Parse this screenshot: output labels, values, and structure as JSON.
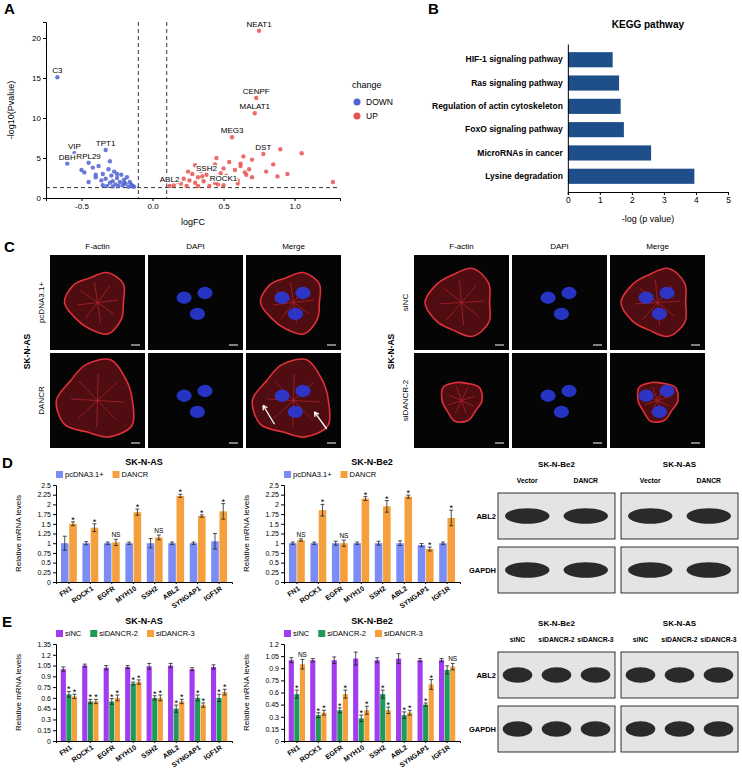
{
  "chart_data": [
    {
      "type": "scatter",
      "x_label": "logFC",
      "y_label": "-log10(Pvalue)",
      "legend_title": "change",
      "legend": "right",
      "grid": false,
      "xlim": [
        -0.75,
        1.32
      ],
      "xticks": [
        -0.5,
        {
          "value": 0,
          "label": "0.0"
        },
        0.5,
        {
          "value": 1,
          "label": "1.0"
        }
      ],
      "ylim": [
        0,
        22
      ],
      "yticks": [
        0,
        5,
        10,
        15,
        20
      ],
      "reference_lines": {
        "x": [
          -0.1,
          0.1
        ],
        "y": [
          1.3
        ]
      },
      "series": [
        {
          "name": "DOWN",
          "color": "#4f63d2",
          "x": [
            -0.67,
            -0.55,
            -0.6,
            -0.33,
            -0.45,
            -0.5,
            -0.48,
            -0.42,
            -0.4,
            -0.38,
            -0.36,
            -0.35,
            -0.33,
            -0.31,
            -0.3,
            -0.29,
            -0.28,
            -0.27,
            -0.26,
            -0.25,
            -0.24,
            -0.23,
            -0.22,
            -0.21,
            -0.2,
            -0.19,
            -0.18,
            -0.17,
            -0.16,
            -0.15,
            -0.14,
            -0.13,
            -0.4,
            -0.35,
            -0.3,
            -0.25,
            -0.2,
            -0.45,
            -0.32,
            -0.28
          ],
          "values": [
            15.1,
            5.6,
            4.3,
            6.0,
            4.4,
            3.5,
            3.2,
            3.8,
            2.6,
            4.0,
            2.2,
            3.0,
            2.4,
            3.6,
            1.9,
            2.8,
            2.1,
            3.3,
            1.7,
            2.5,
            1.5,
            2.0,
            2.9,
            1.6,
            2.3,
            1.8,
            2.6,
            1.4,
            2.0,
            1.7,
            1.5,
            1.4,
            2.9,
            1.6,
            4.6,
            3.0,
            1.9,
            2.0,
            1.5,
            1.45
          ]
        },
        {
          "name": "UP",
          "color": "#e8524f",
          "x": [
            0.75,
            0.73,
            0.72,
            0.56,
            0.78,
            0.38,
            0.12,
            0.5,
            0.15,
            0.18,
            0.2,
            0.22,
            0.24,
            0.26,
            0.28,
            0.3,
            0.32,
            0.34,
            0.36,
            0.4,
            0.42,
            0.44,
            0.46,
            0.48,
            0.52,
            0.54,
            0.58,
            0.6,
            0.62,
            0.64,
            0.66,
            0.68,
            0.7,
            0.8,
            0.85,
            0.9,
            0.95,
            1.05,
            1.27,
            0.25,
            0.3,
            0.35,
            0.4,
            0.45,
            0.5,
            0.55,
            0.6,
            0.65,
            0.7,
            0.32,
            0.44,
            0.62,
            0.88
          ],
          "values": [
            20.9,
            12.5,
            10.6,
            7.6,
            5.5,
            2.9,
            1.5,
            1.6,
            1.6,
            2.0,
            1.8,
            2.4,
            1.5,
            2.2,
            3.0,
            1.9,
            2.6,
            3.4,
            2.1,
            3.8,
            2.5,
            4.2,
            1.7,
            3.1,
            2.8,
            4.5,
            3.5,
            2.2,
            4.0,
            5.2,
            2.9,
            3.6,
            4.8,
            3.3,
            4.2,
            6.1,
            3.0,
            5.6,
            2.0,
            3.3,
            4.1,
            2.7,
            1.5,
            5.0,
            3.7,
            2.4,
            1.8,
            3.2,
            2.6,
            1.5,
            1.9,
            4.3,
            2.7
          ]
        }
      ],
      "annotations": [
        {
          "text": "NEAT1",
          "x": 0.75,
          "y": 20.9
        },
        {
          "text": "C3",
          "x": -0.67,
          "y": 15.1
        },
        {
          "text": "CENPF",
          "x": 0.73,
          "y": 12.5
        },
        {
          "text": "MALAT1",
          "x": 0.72,
          "y": 10.6
        },
        {
          "text": "MEG3",
          "x": 0.56,
          "y": 7.6
        },
        {
          "text": "VIP",
          "x": -0.55,
          "y": 5.6
        },
        {
          "text": "TPT1",
          "x": -0.33,
          "y": 6.0
        },
        {
          "text": "DBH",
          "x": -0.6,
          "y": 4.3
        },
        {
          "text": "RPL29",
          "x": -0.45,
          "y": 4.4
        },
        {
          "text": "DST",
          "x": 0.78,
          "y": 5.5
        },
        {
          "text": "SSH2",
          "x": 0.38,
          "y": 2.9
        },
        {
          "text": "ABL2",
          "x": 0.12,
          "y": 1.5
        },
        {
          "text": "ROCK1",
          "x": 0.5,
          "y": 1.6
        }
      ]
    },
    {
      "type": "bar",
      "orientation": "horizontal",
      "title": "KEGG pathway",
      "x_label": "-log (p value)",
      "grid": false,
      "categories": [
        "HIF-1 signaling pathway",
        "Ras signaling pathway",
        "Regulation of actin cytoskeleton",
        "FoxO signaling pathway",
        "MicroRNAs in cancer",
        "Lysine degradation"
      ],
      "values": [
        1.4,
        1.6,
        1.65,
        1.75,
        2.6,
        3.95
      ],
      "color": "#1f4f8b",
      "xlim": [
        0,
        5
      ],
      "xticks": [
        0,
        1,
        2,
        3,
        4,
        5
      ]
    },
    {
      "type": "bar",
      "title": "SK-N-AS",
      "y_label": "Relative mRNA levels",
      "legend": "top",
      "categories": [
        "FN1",
        "ROCK1",
        "EGFR",
        "MYH10",
        "SSH2",
        "ABL2",
        "SYNGAP1",
        "IGF1R"
      ],
      "ylim": [
        0,
        2.5
      ],
      "yticks": [
        0,
        0.25,
        0.5,
        0.75,
        1,
        1.25,
        1.5,
        1.75,
        2,
        2.25,
        2.5
      ],
      "series": [
        {
          "name": "pcDNA3.1+",
          "color": "#7b8cf5",
          "values": [
            1.0,
            1.0,
            1.0,
            1.0,
            1.0,
            1.0,
            1.0,
            1.05
          ],
          "errors": [
            0.18,
            0.04,
            0.03,
            0.03,
            0.12,
            0.03,
            0.03,
            0.2
          ]
        },
        {
          "name": "DANCR",
          "color": "#f5a03c",
          "values": [
            1.5,
            1.4,
            1.02,
            1.8,
            1.15,
            2.22,
            1.7,
            1.82
          ],
          "errors": [
            0.05,
            0.1,
            0.08,
            0.08,
            0.06,
            0.04,
            0.03,
            0.2
          ],
          "significance": [
            "*",
            "*",
            "NS",
            "*",
            "NS",
            "*",
            "*",
            "*"
          ]
        }
      ]
    },
    {
      "type": "bar",
      "title": "SK-N-Be2",
      "y_label": "Relative mRNA levels",
      "legend": "top",
      "categories": [
        "FN1",
        "ROCK1",
        "EGFR",
        "MYH10",
        "SSH2",
        "ABL2",
        "SYNGAP1",
        "IGF1R"
      ],
      "ylim": [
        0,
        2.5
      ],
      "yticks": [
        0,
        0.25,
        0.5,
        0.75,
        1,
        1.25,
        1.5,
        1.75,
        2,
        2.25,
        2.5
      ],
      "series": [
        {
          "name": "pcDNA3.1+",
          "color": "#7b8cf5",
          "values": [
            1.0,
            1.0,
            1.0,
            1.0,
            1.0,
            1.0,
            0.95,
            1.0
          ],
          "errors": [
            0.03,
            0.03,
            0.05,
            0.03,
            0.05,
            0.06,
            0.04,
            0.03
          ]
        },
        {
          "name": "DANCR",
          "color": "#f5a03c",
          "values": [
            1.08,
            1.85,
            1.0,
            2.15,
            1.95,
            2.2,
            0.85,
            1.65
          ],
          "errors": [
            0.03,
            0.15,
            0.08,
            0.05,
            0.15,
            0.04,
            0.05,
            0.2
          ],
          "significance": [
            "NS",
            "*",
            "NS",
            "*",
            "*",
            "*",
            "*",
            "*"
          ]
        }
      ]
    },
    {
      "type": "bar",
      "title": "SK-N-AS",
      "y_label": "Relative mRNA levels",
      "legend": "top",
      "categories": [
        "FN1",
        "ROCK1",
        "EGFR",
        "MYH10",
        "SSH2",
        "ABL2",
        "SYNGAP1",
        "IGF1R"
      ],
      "ylim": [
        0,
        1.35
      ],
      "yticks": [
        0,
        0.15,
        0.3,
        0.45,
        0.6,
        0.75,
        0.9,
        1.05,
        1.2,
        1.35
      ],
      "series": [
        {
          "name": "siNC",
          "color": "#a13cf0",
          "values": [
            1.0,
            1.05,
            1.02,
            1.03,
            1.04,
            1.05,
            1.0,
            1.03
          ],
          "errors": [
            0.03,
            0.02,
            0.03,
            0.02,
            0.04,
            0.03,
            0.02,
            0.03
          ]
        },
        {
          "name": "siDANCR-2",
          "color": "#1f9a57",
          "values": [
            0.65,
            0.55,
            0.55,
            0.8,
            0.6,
            0.45,
            0.6,
            0.6
          ],
          "errors": [
            0.04,
            0.03,
            0.04,
            0.02,
            0.03,
            0.05,
            0.04,
            0.05
          ],
          "significance": [
            "*",
            "*",
            "*",
            "*",
            "*",
            "*",
            "*",
            "*"
          ]
        },
        {
          "name": "siDANCR-3",
          "color": "#f5a03c",
          "values": [
            0.62,
            0.55,
            0.6,
            0.82,
            0.6,
            0.55,
            0.5,
            0.68
          ],
          "errors": [
            0.03,
            0.03,
            0.04,
            0.03,
            0.04,
            0.03,
            0.03,
            0.04
          ],
          "significance": [
            "*",
            "*",
            "*",
            "*",
            "*",
            "*",
            "*",
            "*"
          ]
        }
      ]
    },
    {
      "type": "bar",
      "title": "SK-N-Be2",
      "y_label": "Relative mRNA levels",
      "legend": "top",
      "categories": [
        "FN1",
        "ROCK1",
        "EGFR",
        "MYH10",
        "SSH2",
        "ABL2",
        "SYNGAP1",
        "IGF1R"
      ],
      "ylim": [
        0,
        1.2
      ],
      "yticks": [
        0,
        0.15,
        0.3,
        0.45,
        0.6,
        0.75,
        0.9,
        1.05,
        1.2
      ],
      "series": [
        {
          "name": "siNC",
          "color": "#a13cf0",
          "values": [
            1.0,
            1.0,
            1.0,
            1.02,
            1.0,
            1.02,
            1.0,
            1.0
          ],
          "errors": [
            0.03,
            0.02,
            0.04,
            0.08,
            0.03,
            0.06,
            0.02,
            0.02
          ]
        },
        {
          "name": "siDANCR-2",
          "color": "#1f9a57",
          "values": [
            0.58,
            0.32,
            0.38,
            0.28,
            0.58,
            0.32,
            0.45,
            0.88
          ],
          "errors": [
            0.05,
            0.03,
            0.03,
            0.04,
            0.05,
            0.04,
            0.02,
            0.05
          ],
          "significance": [
            "*",
            "*",
            "*",
            "*",
            "*",
            "*",
            "*",
            null
          ]
        },
        {
          "name": "siDANCR-3",
          "color": "#f5a03c",
          "values": [
            0.95,
            0.35,
            0.58,
            0.38,
            0.38,
            0.35,
            0.7,
            0.92
          ],
          "errors": [
            0.06,
            0.03,
            0.05,
            0.05,
            0.04,
            0.03,
            0.06,
            0.04
          ],
          "significance": [
            "NS",
            "*",
            "*",
            "*",
            "*",
            "*",
            "*",
            "NS"
          ]
        }
      ]
    }
  ],
  "figure": {
    "panel_labels": [
      "A",
      "B",
      "C",
      "D",
      "E"
    ],
    "imaging": {
      "columns": [
        "F-actin",
        "DAPI",
        "Merge"
      ],
      "groups": [
        {
          "cell_line": "SK-N-AS",
          "rows": [
            "pcDNA3.1+",
            "DANCR"
          ]
        },
        {
          "cell_line": "SK-N-AS",
          "rows": [
            "siNC",
            "siDANCR-2"
          ]
        }
      ]
    },
    "blots": [
      {
        "proteins": [
          "ABL2",
          "GAPDH"
        ],
        "groups": [
          {
            "cell_line": "SK-N-Be2",
            "lanes": [
              "Vector",
              "DANCR"
            ]
          },
          {
            "cell_line": "SK-N-AS",
            "lanes": [
              "Vector",
              "DANCR"
            ]
          }
        ]
      },
      {
        "proteins": [
          "ABL2",
          "GAPDH"
        ],
        "groups": [
          {
            "cell_line": "SK-N-Be2",
            "lanes": [
              "siNC",
              "siDANCR-2",
              "siDANCR-3"
            ]
          },
          {
            "cell_line": "SK-N-AS",
            "lanes": [
              "siNC",
              "siDANCR-2",
              "siDANCR-3"
            ]
          }
        ]
      }
    ]
  }
}
